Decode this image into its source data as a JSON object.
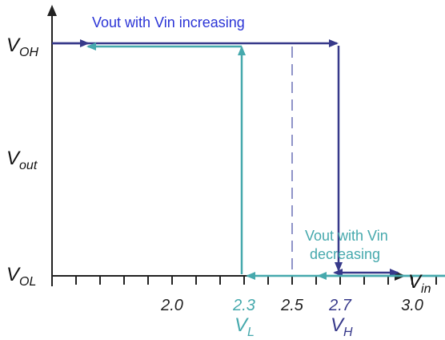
{
  "chart_data": {
    "type": "line",
    "title": "",
    "xlabel": {
      "main": "V",
      "sub": "in"
    },
    "ylabel": {
      "main": "V",
      "sub": "out"
    },
    "y_levels": {
      "high": {
        "main": "V",
        "sub": "OH"
      },
      "low": {
        "main": "V",
        "sub": "OL"
      }
    },
    "xlim": [
      1.5,
      3.2
    ],
    "ylim": [
      0,
      1
    ],
    "x_tick_labels": [
      {
        "value": 2.0,
        "text": "2.0"
      },
      {
        "value": 2.3,
        "text": "2.3",
        "color": "#46a9ad"
      },
      {
        "value": 2.5,
        "text": "2.5"
      },
      {
        "value": 2.7,
        "text": "2.7",
        "color": "#37398a"
      },
      {
        "value": 3.0,
        "text": "3.0"
      }
    ],
    "x_minor_ticks": [
      1.6,
      1.7,
      1.8,
      1.9,
      2.0,
      2.1,
      2.2,
      2.3,
      2.4,
      2.5,
      2.6,
      2.7,
      2.8,
      2.9,
      3.0,
      3.1
    ],
    "thresholds": {
      "low": {
        "value": 2.3,
        "main": "V",
        "sub": "L",
        "color": "#46a9ad"
      },
      "high": {
        "value": 2.7,
        "main": "V",
        "sub": "H",
        "color": "#37398a"
      }
    },
    "midpoint": {
      "value": 2.5,
      "color": "#8f94c8"
    },
    "series": [
      {
        "name": "Vout with Vin increasing",
        "color": "#37398a",
        "label_color": "#2b34d6",
        "points": [
          [
            1.5,
            1
          ],
          [
            2.7,
            1
          ],
          [
            2.7,
            0
          ],
          [
            3.2,
            0
          ]
        ]
      },
      {
        "name": "Vout with Vin decreasing",
        "color": "#46a9ad",
        "label_color": "#46a9ad",
        "points": [
          [
            3.15,
            0
          ],
          [
            2.3,
            0
          ],
          [
            2.3,
            1
          ],
          [
            1.5,
            1
          ]
        ]
      }
    ],
    "annotations": [
      {
        "text": "Vout with Vin increasing",
        "series": 0
      },
      {
        "text": "Vout with Vin",
        "series": 1
      },
      {
        "text": "decreasing",
        "series": 1
      }
    ],
    "grid": false,
    "legend": "none"
  }
}
